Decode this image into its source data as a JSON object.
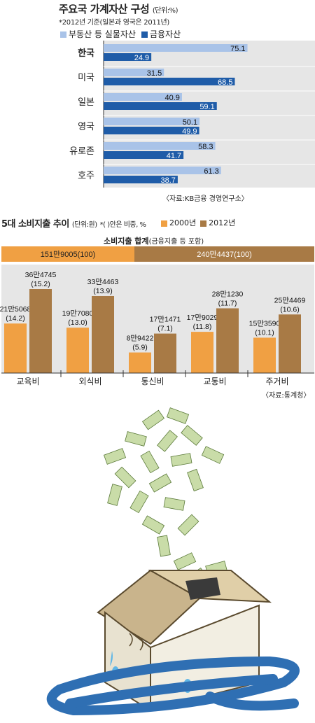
{
  "chart1": {
    "title": "주요국 가계자산 구성",
    "unit": "(단위:%)",
    "note": "*2012년 기준(일본과 영국은 2011년)",
    "legend": [
      "부동산 등 실물자산",
      "금융자산"
    ],
    "source": "〈자료:KB금융 경영연구소〉"
  },
  "chart2": {
    "title": "5대 소비지출 추이",
    "unit": "(단위:원)",
    "note": "*( )안은 비중, %",
    "legend": [
      "2000년",
      "2012년"
    ],
    "total_title": "소비지출 합계",
    "total_sub": "(금융지출 등 포함)",
    "total_2000_label": "151만9005(100)",
    "total_2012_label": "240만4437(100)",
    "source": "〈자료:통계청〉"
  },
  "colors": {
    "real_asset": "#a9c3e8",
    "financial_asset": "#1f5ca8",
    "year_2000": "#f0a043",
    "year_2012": "#a87a45",
    "bg_panel": "#e6e6e6"
  },
  "chart_data": [
    {
      "type": "bar",
      "orientation": "horizontal",
      "categories": [
        "한국",
        "미국",
        "일본",
        "영국",
        "유로존",
        "호주"
      ],
      "series": [
        {
          "name": "부동산 등 실물자산",
          "values": [
            75.1,
            31.5,
            40.9,
            50.1,
            58.3,
            61.3
          ]
        },
        {
          "name": "금융자산",
          "values": [
            24.9,
            68.5,
            59.1,
            49.9,
            41.7,
            38.7
          ]
        }
      ],
      "xlim": [
        0,
        80
      ]
    },
    {
      "type": "bar",
      "categories": [
        "교육비",
        "외식비",
        "통신비",
        "교통비",
        "주거비"
      ],
      "series": [
        {
          "name": "2000년",
          "values": [
            215068,
            197080,
            89422,
            179029,
            153590
          ],
          "labels": [
            "21만5068",
            "19만7080",
            "8만9422",
            "17만9029",
            "15만3590"
          ],
          "share_labels": [
            "(14.2)",
            "(13.0)",
            "(5.9)",
            "(11.8)",
            "(10.1)"
          ]
        },
        {
          "name": "2012년",
          "values": [
            364745,
            334463,
            171471,
            281230,
            254469
          ],
          "labels": [
            "36만4745",
            "33만4463",
            "17만1471",
            "28만1230",
            "25만4469"
          ],
          "share_labels": [
            "(15.2)",
            "(13.9)",
            "(7.1)",
            "(11.7)",
            "(10.6)"
          ]
        }
      ],
      "totals": [
        1519005,
        2404437
      ]
    }
  ]
}
